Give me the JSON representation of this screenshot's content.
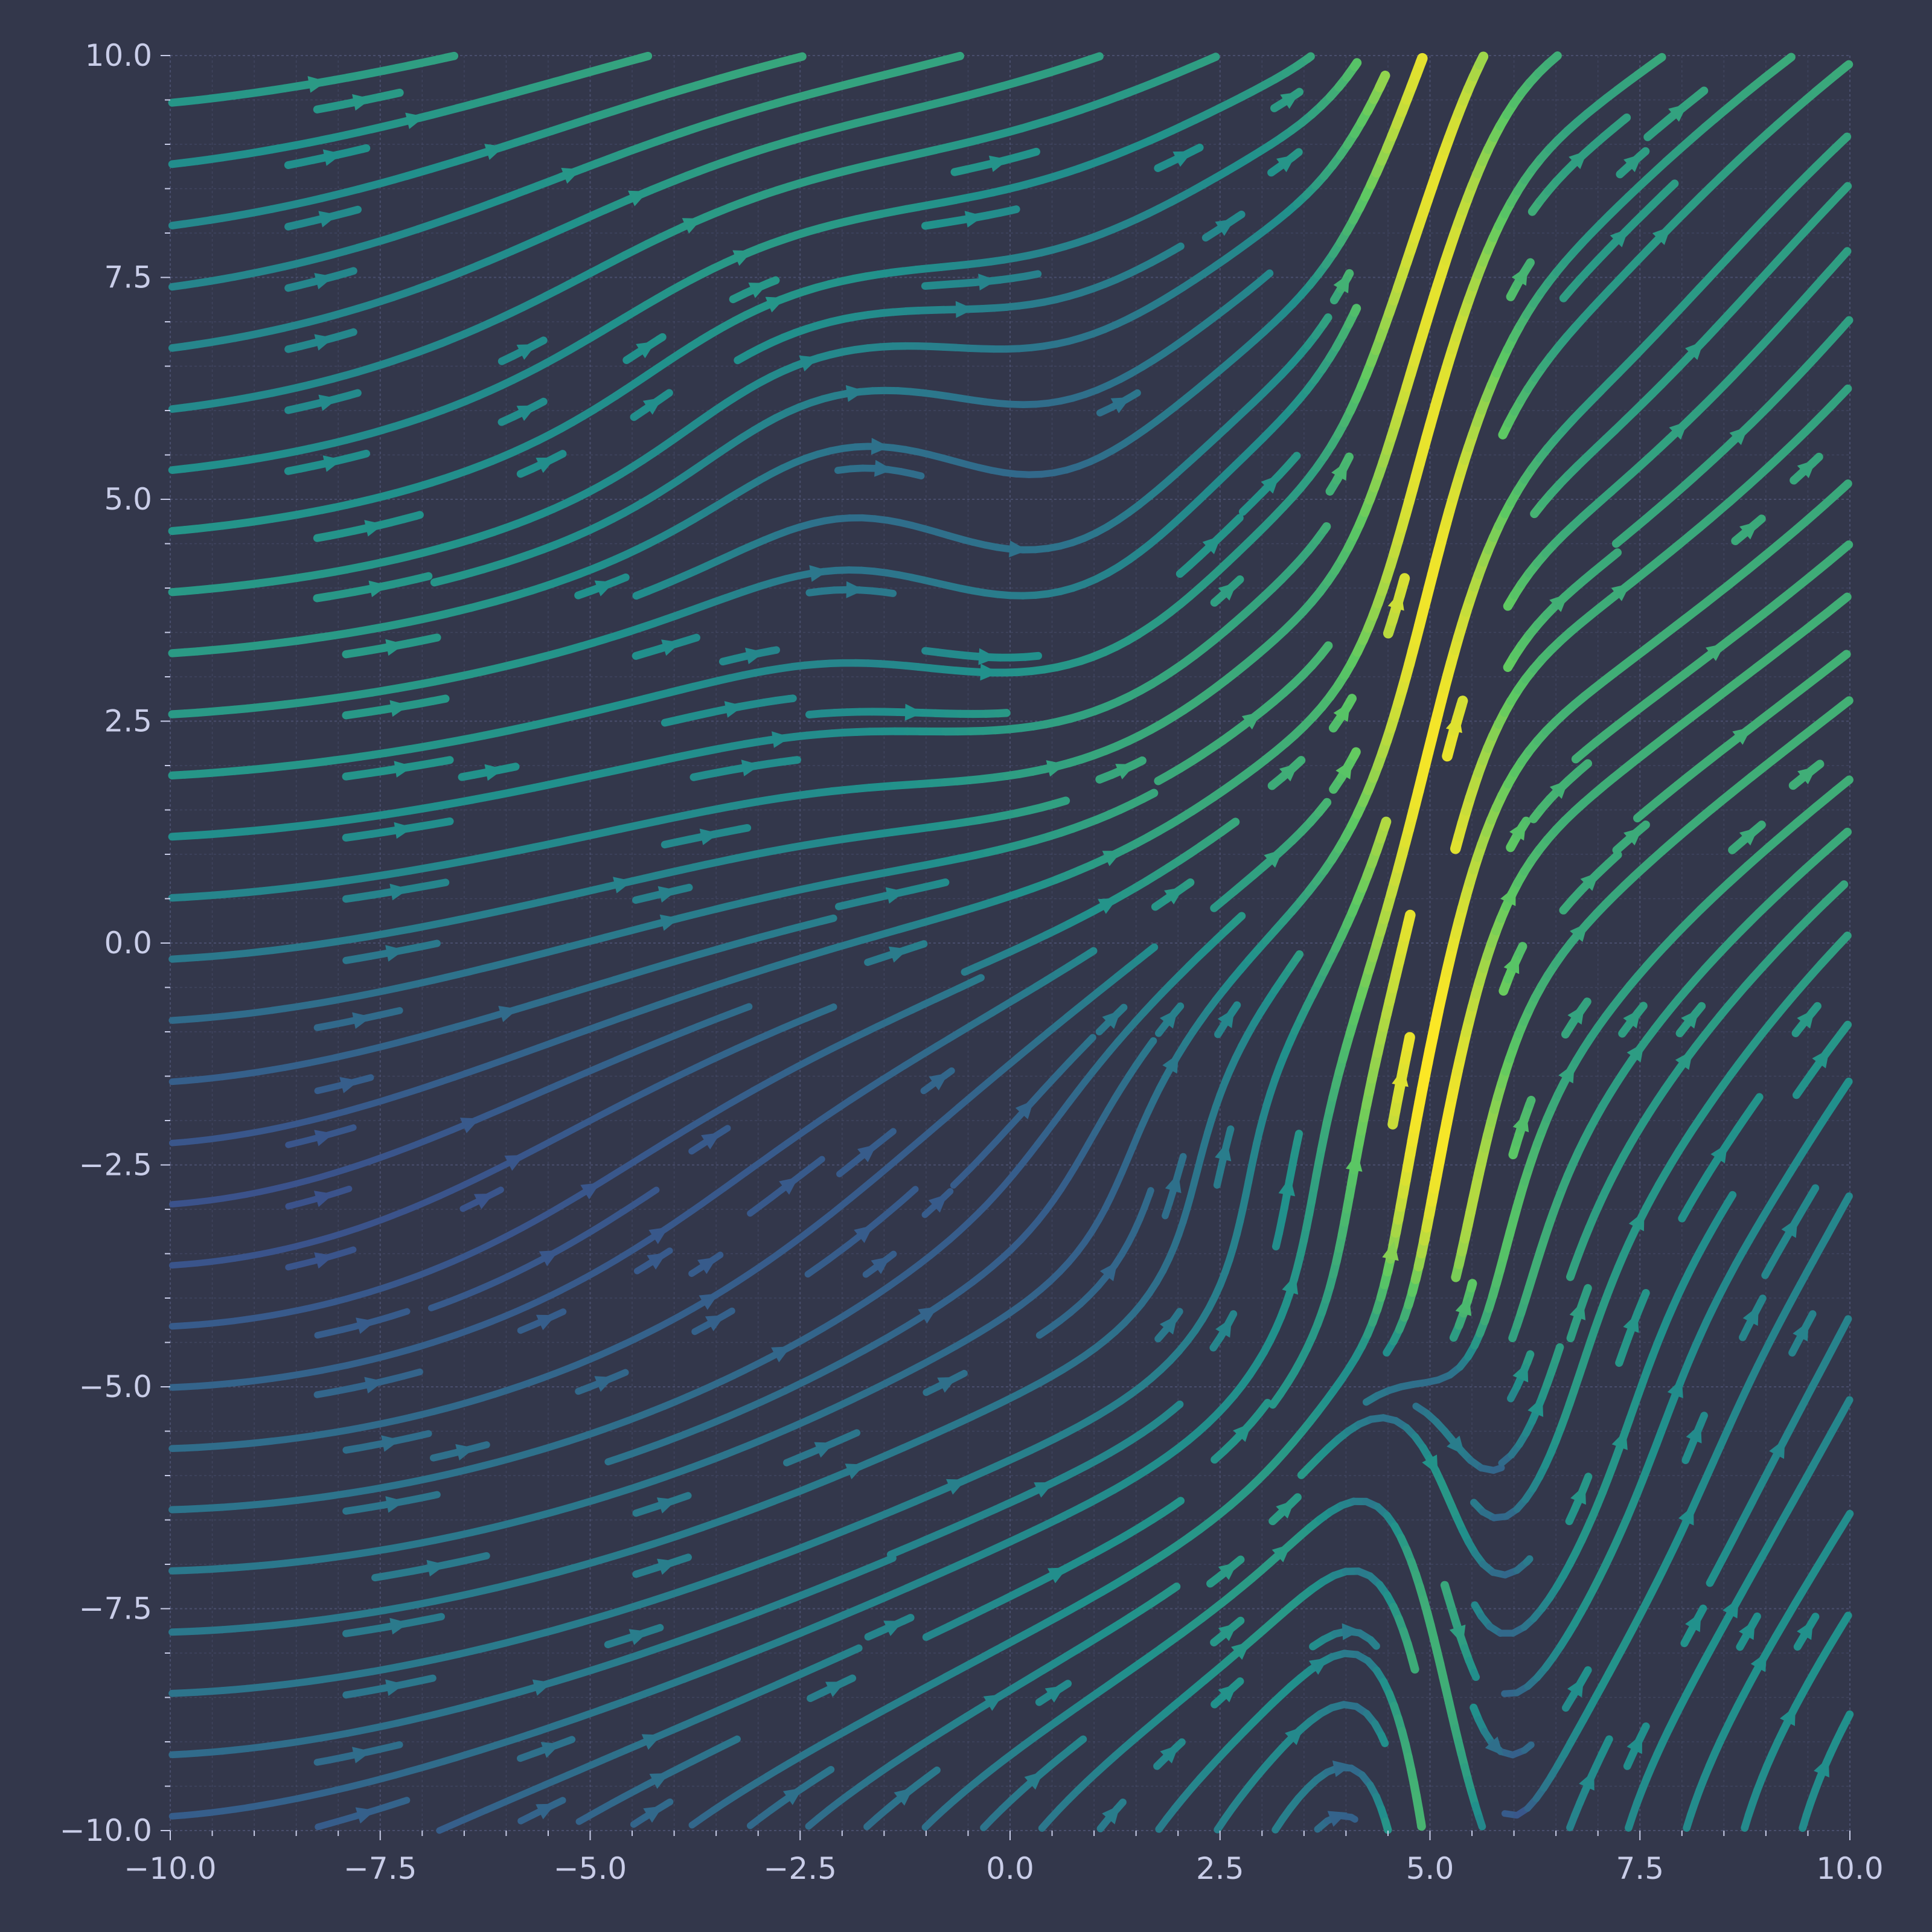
{
  "chart_data": {
    "type": "streamline",
    "title": "",
    "xlabel": "",
    "ylabel": "",
    "xlim": [
      -10,
      10
    ],
    "ylim": [
      -10,
      10
    ],
    "grid": true,
    "minor_grid": true,
    "colormap": "viridis",
    "colormap_stops": [
      "#440154",
      "#3b528b",
      "#21918c",
      "#5ec962",
      "#fde725"
    ],
    "colored_by": "speed",
    "xticks": [
      -10,
      -7.5,
      -5,
      -2.5,
      0,
      2.5,
      5,
      7.5,
      10
    ],
    "yticks": [
      -10,
      -7.5,
      -5,
      -2.5,
      0,
      2.5,
      5,
      7.5,
      10
    ],
    "xtick_labels": [
      "−10.0",
      "−7.5",
      "−5.0",
      "−2.5",
      "0.0",
      "2.5",
      "5.0",
      "7.5",
      "10.0"
    ],
    "ytick_labels": [
      "−10.0",
      "−7.5",
      "−5.0",
      "−2.5",
      "0.0",
      "2.5",
      "5.0",
      "7.5",
      "10.0"
    ],
    "features": [
      {
        "kind": "vortex",
        "x": -2.2,
        "y": 6.1,
        "sense": "counter-clockwise"
      },
      {
        "kind": "vortex",
        "x": 0.9,
        "y": 3.4,
        "sense": "clockwise"
      },
      {
        "kind": "vortex",
        "x": 2.9,
        "y": -4.3,
        "sense": "clockwise"
      },
      {
        "kind": "vortex",
        "x": 7.3,
        "y": -4.3,
        "sense": "counter-clockwise"
      },
      {
        "kind": "saddle",
        "x": -2.9,
        "y": -4.3
      },
      {
        "kind": "saddle",
        "x": 4.8,
        "y": 3.0
      },
      {
        "kind": "saddle",
        "x": -1.0,
        "y": 4.8
      },
      {
        "kind": "jet",
        "x": 5.0,
        "y": -4.3,
        "direction": "up/down split"
      }
    ]
  },
  "colors": {
    "background": "#33374b",
    "plot_background": "#33374b",
    "grid": "#4c5170",
    "tick_label": "#c9cde8"
  }
}
